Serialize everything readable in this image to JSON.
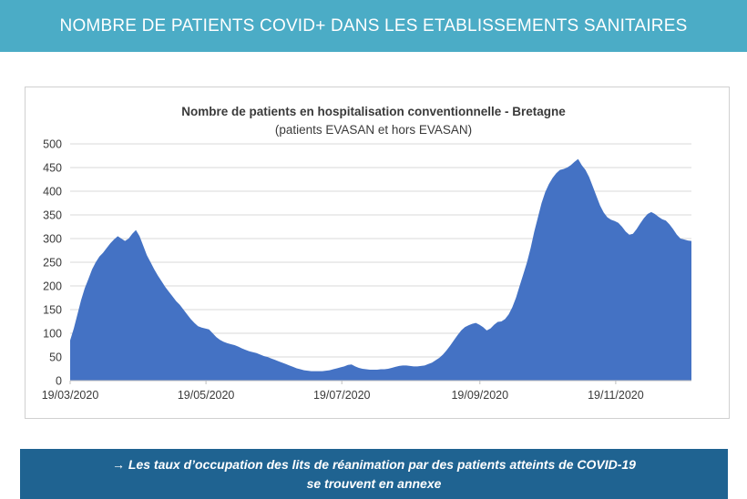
{
  "header": {
    "title": "NOMBRE DE PATIENTS COVID+ DANS LES ETABLISSEMENTS SANITAIRES"
  },
  "footer": {
    "line1": "→ Les taux d’occupation des lits de réanimation par des patients atteints de COVID-19",
    "line2": "se trouvent en annexe"
  },
  "colors": {
    "header_bg": "#4bacc6",
    "footer_bg": "#1f6391",
    "series": "#4472c4"
  },
  "chart_data": {
    "type": "area",
    "title": "Nombre de patients en hospitalisation conventionnelle - Bretagne",
    "subtitle": "(patients EVASAN et hors EVASAN)",
    "xlabel": "",
    "ylabel": "",
    "x_start": "19/03/2020",
    "x_end": "23/12/2020",
    "x_ticks": [
      "19/03/2020",
      "19/05/2020",
      "19/07/2020",
      "19/09/2020",
      "19/11/2020"
    ],
    "ylim": [
      0,
      500
    ],
    "y_ticks": [
      0,
      50,
      100,
      150,
      200,
      250,
      300,
      350,
      400,
      450,
      500
    ],
    "grid": true,
    "legend": "none",
    "series": [
      {
        "values": [
          85,
          110,
          140,
          170,
          195,
          215,
          235,
          250,
          262,
          270,
          280,
          290,
          298,
          305,
          300,
          295,
          300,
          310,
          318,
          305,
          285,
          265,
          250,
          235,
          222,
          210,
          198,
          188,
          178,
          168,
          160,
          150,
          140,
          130,
          122,
          115,
          112,
          110,
          108,
          100,
          92,
          86,
          82,
          79,
          77,
          75,
          72,
          68,
          65,
          62,
          60,
          58,
          55,
          52,
          50,
          47,
          44,
          41,
          38,
          35,
          32,
          29,
          26,
          24,
          22,
          21,
          20,
          20,
          20,
          20,
          21,
          22,
          24,
          26,
          28,
          30,
          33,
          34,
          30,
          27,
          25,
          24,
          23,
          23,
          23,
          24,
          24,
          25,
          27,
          29,
          31,
          32,
          32,
          31,
          30,
          30,
          31,
          32,
          35,
          38,
          43,
          48,
          55,
          64,
          74,
          85,
          96,
          106,
          113,
          117,
          120,
          122,
          118,
          113,
          106,
          110,
          118,
          124,
          125,
          130,
          140,
          155,
          175,
          200,
          225,
          250,
          280,
          315,
          345,
          375,
          398,
          415,
          428,
          438,
          445,
          447,
          450,
          455,
          462,
          468,
          455,
          445,
          430,
          410,
          390,
          370,
          355,
          345,
          340,
          337,
          333,
          325,
          315,
          308,
          310,
          320,
          332,
          343,
          352,
          356,
          352,
          346,
          341,
          338,
          330,
          320,
          308,
          300,
          298,
          296,
          295
        ]
      }
    ]
  }
}
